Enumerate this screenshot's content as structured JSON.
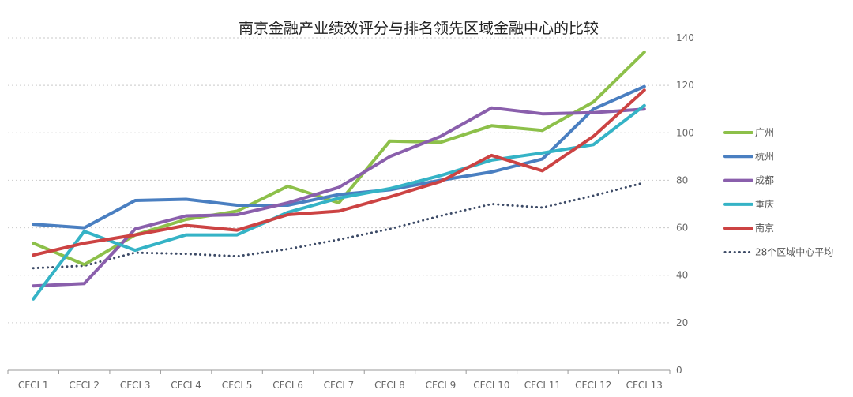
{
  "chart_data": {
    "type": "line",
    "title": "南京金融产业绩效评分与排名领先区域金融中心的比较",
    "xlabel": "",
    "ylabel": "",
    "categories": [
      "CFCI 1",
      "CFCI 2",
      "CFCI 3",
      "CFCI 4",
      "CFCI 5",
      "CFCI 6",
      "CFCI 7",
      "CFCI 8",
      "CFCI 9",
      "CFCI 10",
      "CFCI 11",
      "CFCI 12",
      "CFCI 13"
    ],
    "ylim": [
      0,
      140
    ],
    "yticks": [
      0,
      20,
      40,
      60,
      80,
      100,
      120,
      140
    ],
    "grid": true,
    "legend_position": "right",
    "series": [
      {
        "name": "广州",
        "color": "#8dc04a",
        "style": "solid",
        "values": [
          53.5,
          44.5,
          57,
          63.5,
          67,
          77.5,
          70.5,
          96.5,
          96,
          103,
          101,
          113,
          134
        ]
      },
      {
        "name": "杭州",
        "color": "#4a7fc1",
        "style": "solid",
        "values": [
          61.5,
          60,
          71.5,
          72,
          69.5,
          69.5,
          74,
          76,
          80,
          83.5,
          89,
          110,
          119.5
        ]
      },
      {
        "name": "成都",
        "color": "#8a5fac",
        "style": "solid",
        "values": [
          35.5,
          36.5,
          59.5,
          65,
          65.5,
          70.5,
          77,
          90,
          98.5,
          110.5,
          108,
          108.5,
          110
        ]
      },
      {
        "name": "重庆",
        "color": "#35b3c6",
        "style": "solid",
        "values": [
          30,
          58.5,
          50.5,
          57,
          57,
          66.5,
          72.5,
          76.5,
          82,
          88.5,
          91.5,
          95,
          111.5
        ]
      },
      {
        "name": "南京",
        "color": "#cc4343",
        "style": "solid",
        "values": [
          48.5,
          53.5,
          57,
          61,
          59,
          65.5,
          67,
          73,
          79.5,
          90.5,
          84,
          98.5,
          118
        ]
      },
      {
        "name": "28个区域中心平均",
        "color": "#3c4a66",
        "style": "dotted",
        "values": [
          43,
          44,
          49.5,
          49,
          48,
          51,
          55,
          59.5,
          65,
          70,
          68.5,
          73.5,
          79
        ]
      }
    ]
  }
}
